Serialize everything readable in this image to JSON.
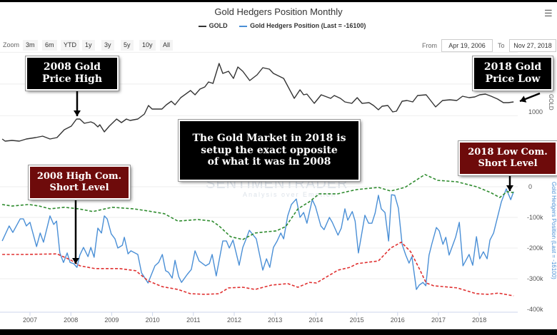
{
  "header": {
    "title": "Gold Hedgers Position Monthly",
    "menu_icon": "hamburger-menu-icon"
  },
  "legend": [
    {
      "label": "GOLD",
      "color": "#333333"
    },
    {
      "label": "Gold Hedgers Position (Last = -16100)",
      "color": "#4a8fd6"
    }
  ],
  "range_selector": {
    "zoom_label": "Zoom",
    "buttons": [
      "3m",
      "6m",
      "YTD",
      "1y",
      "3y",
      "5y",
      "10y",
      "All"
    ],
    "from_label": "From",
    "from_value": "Apr 19, 2006",
    "to_label": "To",
    "to_value": "Nov 27, 2018"
  },
  "annotations": {
    "gold_high": [
      "2008 Gold",
      "Price High"
    ],
    "gold_low": [
      "2018 Gold",
      "Price Low"
    ],
    "center": [
      "The Gold Market in 2018 is",
      "setup the exact opposite",
      "of what it was in 2008"
    ],
    "high_short": [
      "2008 High Com.",
      "Short Level"
    ],
    "low_short": [
      "2018 Low Com.",
      "Short Level"
    ]
  },
  "watermark": {
    "name": "SENTIMENTRADER",
    "tagline": "Analysis over Emotion"
  },
  "colors": {
    "gold": "#333333",
    "hedgers": "#4a8fd6",
    "upper_band": "#2e8b2e",
    "lower_band": "#e03030",
    "callout_dark": "#000000",
    "callout_maroon": "#6e0b0b"
  },
  "chart_data": {
    "type": "line",
    "title": "Gold Hedgers Position Monthly",
    "x_ticks": [
      "2007",
      "2008",
      "2009",
      "2010",
      "2011",
      "2012",
      "2013",
      "2014",
      "2015",
      "2016",
      "2017",
      "2018"
    ],
    "gold_axis": {
      "label": "GOLD",
      "ticks": [
        "1000"
      ],
      "grid": true
    },
    "hedgers_axis": {
      "label": "Gold Hedgers Position (Last = -16100)",
      "ticks": [
        "0",
        "-100k",
        "-200k",
        "-300k",
        "-400k"
      ],
      "range": [
        -400,
        0
      ],
      "unit": "k",
      "grid": true
    },
    "series": [
      {
        "name": "GOLD",
        "axis": "gold",
        "style": "solid",
        "x": [
          2006.32,
          2006.39,
          2006.56,
          2006.74,
          2006.91,
          2007.14,
          2007.31,
          2007.49,
          2007.66,
          2007.84,
          2008.01,
          2008.14,
          2008.22,
          2008.33,
          2008.49,
          2008.57,
          2008.66,
          2008.71,
          2008.82,
          2008.94,
          2009.12,
          2009.24,
          2009.36,
          2009.45,
          2009.64,
          2009.8,
          2009.9,
          2009.99,
          2010.23,
          2010.34,
          2010.46,
          2010.55,
          2010.69,
          2010.93,
          2011.04,
          2011.16,
          2011.28,
          2011.37,
          2011.48,
          2011.63,
          2011.72,
          2011.86,
          2011.98,
          2012.09,
          2012.21,
          2012.38,
          2012.56,
          2012.7,
          2012.86,
          2012.96,
          2013.21,
          2013.47,
          2013.61,
          2013.7,
          2013.78,
          2013.96,
          2014.13,
          2014.36,
          2014.45,
          2014.6,
          2014.71,
          2014.88,
          2015.01,
          2015.13,
          2015.3,
          2015.41,
          2015.53,
          2015.62,
          2015.76,
          2015.88,
          2015.97,
          2016.11,
          2016.23,
          2016.37,
          2016.49,
          2016.7,
          2016.93,
          2017.1,
          2017.28,
          2017.45,
          2017.59,
          2017.75,
          2017.89,
          2018.01,
          2018.15,
          2018.29,
          2018.45,
          2018.59,
          2018.71,
          2018.84
        ],
        "y": [
          632,
          599,
          610,
          599,
          632,
          655,
          677,
          632,
          655,
          779,
          835,
          948,
          948,
          880,
          902,
          880,
          824,
          857,
          745,
          835,
          948,
          891,
          948,
          925,
          948,
          1026,
          1161,
          1105,
          1105,
          1172,
          1229,
          1172,
          1285,
          1397,
          1330,
          1420,
          1454,
          1532,
          1510,
          1825,
          1667,
          1701,
          1589,
          1769,
          1701,
          1555,
          1645,
          1757,
          1735,
          1667,
          1589,
          1274,
          1409,
          1330,
          1341,
          1195,
          1330,
          1274,
          1319,
          1274,
          1217,
          1195,
          1285,
          1195,
          1206,
          1161,
          1094,
          1150,
          1161,
          1060,
          1071,
          1229,
          1240,
          1217,
          1319,
          1330,
          1139,
          1240,
          1251,
          1240,
          1307,
          1285,
          1296,
          1330,
          1341,
          1307,
          1262,
          1206,
          1206,
          1217
        ]
      },
      {
        "name": "Gold Hedgers Position",
        "axis": "hedgers",
        "style": "solid",
        "x": [
          2006.32,
          2006.49,
          2006.58,
          2006.76,
          2006.84,
          2006.91,
          2007.0,
          2007.16,
          2007.25,
          2007.33,
          2007.49,
          2007.58,
          2007.65,
          2007.73,
          2007.82,
          2007.91,
          2007.98,
          2008.07,
          2008.15,
          2008.22,
          2008.31,
          2008.42,
          2008.49,
          2008.57,
          2008.66,
          2008.75,
          2008.82,
          2008.89,
          2008.99,
          2009.08,
          2009.15,
          2009.26,
          2009.31,
          2009.4,
          2009.47,
          2009.64,
          2009.73,
          2009.89,
          2010.06,
          2010.15,
          2010.24,
          2010.32,
          2010.39,
          2010.48,
          2010.55,
          2010.64,
          2010.71,
          2010.85,
          2010.95,
          2011.04,
          2011.14,
          2011.3,
          2011.39,
          2011.46,
          2011.56,
          2011.72,
          2011.81,
          2011.88,
          2011.97,
          2012.12,
          2012.21,
          2012.26,
          2012.37,
          2012.44,
          2012.54,
          2012.7,
          2012.79,
          2012.87,
          2012.96,
          2013.05,
          2013.14,
          2013.21,
          2013.31,
          2013.4,
          2013.52,
          2013.61,
          2013.7,
          2013.78,
          2013.91,
          2013.99,
          2014.12,
          2014.2,
          2014.33,
          2014.4,
          2014.54,
          2014.62,
          2014.71,
          2014.78,
          2014.89,
          2014.96,
          2015.04,
          2015.2,
          2015.29,
          2015.37,
          2015.45,
          2015.53,
          2015.6,
          2015.69,
          2015.78,
          2015.85,
          2015.93,
          2016.02,
          2016.11,
          2016.2,
          2016.28,
          2016.35,
          2016.46,
          2016.53,
          2016.62,
          2016.69,
          2016.77,
          2016.84,
          2016.95,
          2017.02,
          2017.11,
          2017.18,
          2017.26,
          2017.42,
          2017.51,
          2017.6,
          2017.75,
          2017.84,
          2017.93,
          2018.01,
          2018.1,
          2018.19,
          2018.26,
          2018.35,
          2018.54,
          2018.66,
          2018.77,
          2018.84
        ],
        "y": [
          -177,
          -128,
          -149,
          -105,
          -105,
          -128,
          -116,
          -195,
          -151,
          -181,
          -95,
          -123,
          -112,
          -216,
          -247,
          -216,
          -247,
          -251,
          -263,
          -223,
          -198,
          -228,
          -198,
          -230,
          -135,
          -151,
          -95,
          -105,
          -154,
          -170,
          -200,
          -191,
          -165,
          -219,
          -209,
          -221,
          -281,
          -314,
          -258,
          -247,
          -221,
          -274,
          -279,
          -298,
          -240,
          -293,
          -312,
          -286,
          -270,
          -209,
          -242,
          -258,
          -251,
          -221,
          -291,
          -177,
          -177,
          -200,
          -174,
          -256,
          -198,
          -181,
          -142,
          -154,
          -170,
          -272,
          -235,
          -263,
          -198,
          -177,
          -151,
          -170,
          -95,
          -58,
          -40,
          -100,
          -84,
          -119,
          -42,
          -65,
          -128,
          -140,
          -100,
          -116,
          -158,
          -135,
          -72,
          -109,
          -81,
          -112,
          -216,
          -93,
          -119,
          -119,
          -86,
          -28,
          -72,
          -84,
          -177,
          -26,
          -28,
          -70,
          -188,
          -223,
          -249,
          -228,
          -335,
          -321,
          -312,
          -323,
          -223,
          -186,
          -133,
          -144,
          -188,
          -165,
          -223,
          -165,
          -116,
          -258,
          -221,
          -256,
          -163,
          -235,
          -212,
          -235,
          -174,
          -151,
          -49,
          -7,
          -42,
          -16.1
        ]
      },
      {
        "axis": "hedgers",
        "style": "dashed",
        "color": "#2e8b2e",
        "x": [
          2006.32,
          2006.56,
          2006.97,
          2007.23,
          2007.49,
          2007.84,
          2008.19,
          2008.54,
          2009.01,
          2009.54,
          2009.89,
          2010.29,
          2010.62,
          2011.11,
          2011.46,
          2011.63,
          2011.91,
          2012.21,
          2012.51,
          2012.79,
          2013.03,
          2013.26,
          2013.56,
          2013.84,
          2014.08,
          2014.54,
          2014.83,
          2015.01,
          2015.53,
          2015.83,
          2016.18,
          2016.67,
          2016.98,
          2017.46,
          2017.93,
          2018.28,
          2018.5,
          2018.68,
          2018.84
        ],
        "y": [
          -58,
          -63,
          -58,
          -63,
          -72,
          -67,
          -72,
          -81,
          -67,
          -72,
          -79,
          -88,
          -112,
          -107,
          -112,
          -128,
          -163,
          -172,
          -151,
          -147,
          -144,
          -130,
          -72,
          -49,
          -23,
          -23,
          -14,
          -9,
          -2,
          -14,
          -2,
          40,
          21,
          16,
          0,
          -19,
          -35,
          -16,
          -19
        ]
      },
      {
        "axis": "hedgers",
        "style": "dashed",
        "color": "#e03030",
        "x": [
          2006.32,
          2006.84,
          2007.66,
          2008.01,
          2008.22,
          2008.59,
          2009.19,
          2009.59,
          2009.89,
          2010.24,
          2010.62,
          2010.93,
          2011.28,
          2011.63,
          2011.86,
          2012.21,
          2012.51,
          2012.91,
          2013.31,
          2013.56,
          2013.84,
          2014.01,
          2014.54,
          2014.83,
          2015.01,
          2015.53,
          2015.83,
          2016.09,
          2016.32,
          2016.53,
          2016.7,
          2016.88,
          2017.46,
          2017.93,
          2018.21,
          2018.47,
          2018.84
        ],
        "y": [
          -221,
          -221,
          -219,
          -240,
          -258,
          -267,
          -267,
          -274,
          -307,
          -326,
          -335,
          -349,
          -351,
          -349,
          -330,
          -328,
          -335,
          -321,
          -316,
          -328,
          -312,
          -314,
          -272,
          -263,
          -251,
          -242,
          -200,
          -181,
          -212,
          -267,
          -314,
          -323,
          -330,
          -349,
          -351,
          -347,
          -356
        ]
      }
    ]
  }
}
